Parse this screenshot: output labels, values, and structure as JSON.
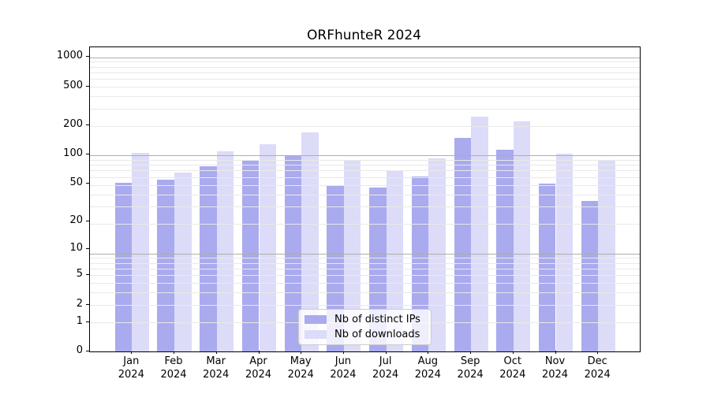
{
  "chart_data": {
    "type": "bar",
    "title": "ORFhunteR 2024",
    "categories": [
      "Jan 2024",
      "Feb 2024",
      "Mar 2024",
      "Apr 2024",
      "May 2024",
      "Jun 2024",
      "Jul 2024",
      "Aug 2024",
      "Sep 2024",
      "Oct 2024",
      "Nov 2024",
      "Dec 2024"
    ],
    "series": [
      {
        "name": "Nb of distinct IPs",
        "color": "#aaaaee",
        "values": [
          51,
          55,
          76,
          87,
          97,
          48,
          46,
          60,
          150,
          113,
          50,
          33
        ]
      },
      {
        "name": "Nb of downloads",
        "color": "#dcdcf8",
        "values": [
          105,
          65,
          108,
          128,
          170,
          88,
          70,
          92,
          248,
          220,
          103,
          88
        ]
      }
    ],
    "yscale": "log1p",
    "ylim": [
      0,
      1250
    ],
    "y_ticks": [
      0,
      1,
      2,
      5,
      10,
      20,
      50,
      100,
      200,
      500,
      1000
    ],
    "grid": "horizontal major+minor log gridlines, drawn over bars",
    "legend_position": "lower center"
  },
  "colors": {
    "grid_major": "#aeaeae",
    "grid_minor": "#e9e9e9",
    "spine": "#000000",
    "background": "#ffffff"
  }
}
